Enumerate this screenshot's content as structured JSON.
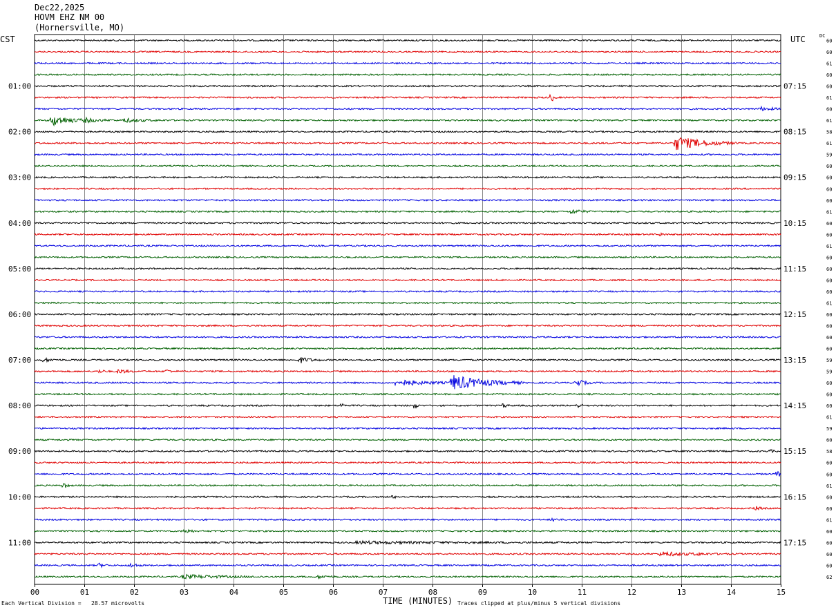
{
  "header": {
    "date": "Dec22,2025",
    "station": "HOVM EHZ NM 00",
    "location": "(Hornersville, MO)"
  },
  "timezones": {
    "left": "CST",
    "right": "UTC"
  },
  "dc_label": "DC",
  "footer": {
    "scale_note": "Each Vertical Division =   28.57 microvolts",
    "xlabel": "TIME (MINUTES)",
    "clip_note": "Traces clipped at plus/minus 5 vertical divisions"
  },
  "colors": {
    "trace": [
      "#000000",
      "#e00000",
      "#0000e0",
      "#006000"
    ],
    "grid": "#888888"
  },
  "chart_data": {
    "type": "line",
    "title": "HOVM EHZ NM 00",
    "xlabel": "TIME (MINUTES)",
    "xlim": [
      0,
      15
    ],
    "x_ticks": [
      "00",
      "01",
      "02",
      "03",
      "04",
      "05",
      "06",
      "07",
      "08",
      "09",
      "10",
      "11",
      "12",
      "13",
      "14",
      "15"
    ],
    "traces_per_hour": 4,
    "left_hour_labels": [
      "01:00",
      "02:00",
      "03:00",
      "04:00",
      "05:00",
      "06:00",
      "07:00",
      "08:00",
      "09:00",
      "10:00",
      "11:00"
    ],
    "right_hour_labels": [
      "07:15",
      "08:15",
      "09:15",
      "10:15",
      "11:15",
      "12:15",
      "13:15",
      "14:15",
      "15:15",
      "16:15",
      "17:15"
    ],
    "dc_offsets": [
      "60",
      "60",
      "61",
      "60",
      "60",
      "61",
      "60",
      "61",
      "58",
      "61",
      "59",
      "60",
      "60",
      "60",
      "60",
      "61",
      "60",
      "60",
      "61",
      "60",
      "60",
      "60",
      "60",
      "61",
      "60",
      "60",
      "60",
      "60",
      "59",
      "59",
      "60",
      "60",
      "60",
      "61",
      "59",
      "60",
      "58",
      "60",
      "60",
      "61",
      "60",
      "60",
      "61",
      "60",
      "60",
      "60",
      "60",
      "62"
    ],
    "events": [
      {
        "trace": 5,
        "minute": 10.4,
        "amp": 2.5,
        "dur": 0.1
      },
      {
        "trace": 6,
        "minute": 14.6,
        "amp": 1.0,
        "dur": 0.6
      },
      {
        "trace": 7,
        "minute": 0.35,
        "amp": 3.5,
        "dur": 0.8
      },
      {
        "trace": 7,
        "minute": 1.0,
        "amp": 1.5,
        "dur": 0.6
      },
      {
        "trace": 7,
        "minute": 1.8,
        "amp": 1.2,
        "dur": 0.8
      },
      {
        "trace": 9,
        "minute": 12.9,
        "amp": 4.5,
        "dur": 1.2
      },
      {
        "trace": 15,
        "minute": 10.8,
        "amp": 1.5,
        "dur": 0.4
      },
      {
        "trace": 17,
        "minute": 12.6,
        "amp": 1.2,
        "dur": 0.1
      },
      {
        "trace": 28,
        "minute": 0.2,
        "amp": 1.2,
        "dur": 0.3
      },
      {
        "trace": 28,
        "minute": 5.35,
        "amp": 1.8,
        "dur": 0.4
      },
      {
        "trace": 29,
        "minute": 1.3,
        "amp": 1.2,
        "dur": 0.2
      },
      {
        "trace": 29,
        "minute": 1.7,
        "amp": 1.5,
        "dur": 0.3
      },
      {
        "trace": 29,
        "minute": 2.65,
        "amp": 1.2,
        "dur": 0.15
      },
      {
        "trace": 30,
        "minute": 7.3,
        "amp": 2.0,
        "dur": 1.2
      },
      {
        "trace": 30,
        "minute": 8.4,
        "amp": 5.0,
        "dur": 1.4
      },
      {
        "trace": 30,
        "minute": 10.9,
        "amp": 2.5,
        "dur": 0.3
      },
      {
        "trace": 32,
        "minute": 6.2,
        "amp": 1.5,
        "dur": 0.1
      },
      {
        "trace": 32,
        "minute": 7.65,
        "amp": 2.5,
        "dur": 0.1
      },
      {
        "trace": 32,
        "minute": 9.45,
        "amp": 1.5,
        "dur": 0.1
      },
      {
        "trace": 32,
        "minute": 10.9,
        "amp": 1.5,
        "dur": 0.2
      },
      {
        "trace": 36,
        "minute": 14.8,
        "amp": 1.0,
        "dur": 0.1
      },
      {
        "trace": 38,
        "minute": 14.95,
        "amp": 2.0,
        "dur": 0.1
      },
      {
        "trace": 39,
        "minute": 0.6,
        "amp": 2.0,
        "dur": 0.1
      },
      {
        "trace": 40,
        "minute": 7.2,
        "amp": 0.8,
        "dur": 0.2
      },
      {
        "trace": 41,
        "minute": 14.5,
        "amp": 1.0,
        "dur": 0.2
      },
      {
        "trace": 42,
        "minute": 10.45,
        "amp": 1.5,
        "dur": 0.1
      },
      {
        "trace": 43,
        "minute": 3.05,
        "amp": 1.5,
        "dur": 0.2
      },
      {
        "trace": 44,
        "minute": 6.5,
        "amp": 0.7,
        "dur": 4.5
      },
      {
        "trace": 45,
        "minute": 12.6,
        "amp": 1.2,
        "dur": 1.4
      },
      {
        "trace": 45,
        "minute": 13.3,
        "amp": 1.0,
        "dur": 0.3
      },
      {
        "trace": 46,
        "minute": 1.3,
        "amp": 1.2,
        "dur": 0.2
      },
      {
        "trace": 46,
        "minute": 1.95,
        "amp": 1.8,
        "dur": 0.2
      },
      {
        "trace": 47,
        "minute": 3.0,
        "amp": 1.2,
        "dur": 1.6
      },
      {
        "trace": 47,
        "minute": 5.7,
        "amp": 0.8,
        "dur": 0.5
      }
    ]
  }
}
